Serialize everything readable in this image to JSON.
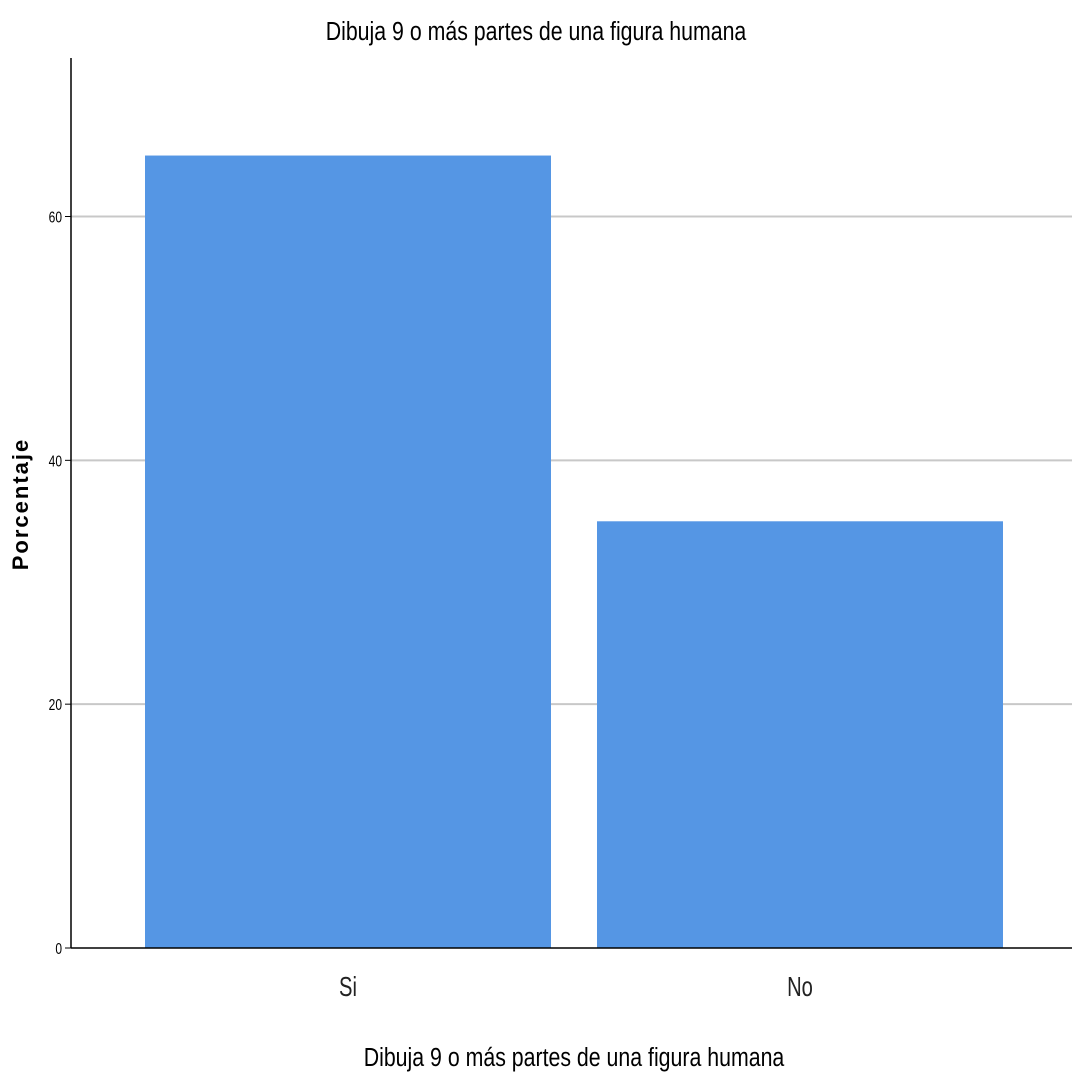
{
  "chart_data": {
    "type": "bar",
    "title": "Dibuja 9 o más partes de una figura humana",
    "xlabel": "Dibuja 9 o más partes de una figura humana",
    "ylabel": "Porcentaje",
    "categories": [
      "Si",
      "No"
    ],
    "values": [
      65,
      35
    ],
    "ylim": [
      0,
      73
    ],
    "yticks": [
      0,
      20,
      40,
      60
    ],
    "grid": true,
    "colors": {
      "bar": "#5596E4",
      "grid": "#C8C8C8",
      "axis": "#000000"
    }
  }
}
